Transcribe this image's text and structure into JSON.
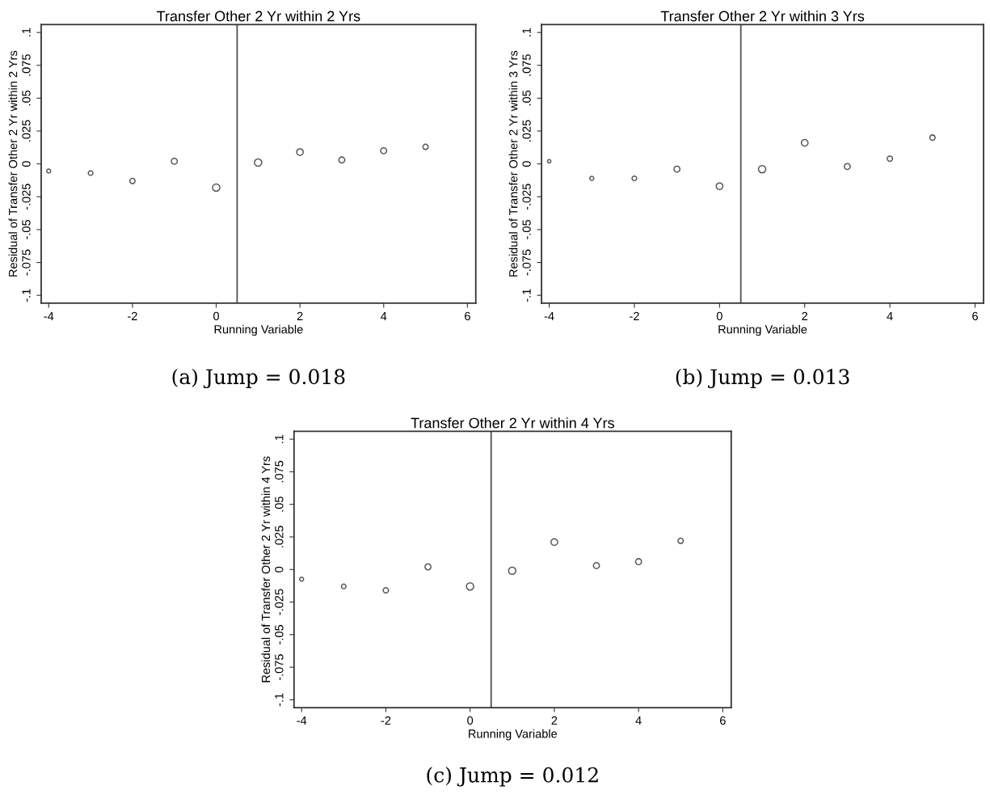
{
  "chart_data": [
    {
      "type": "bubble",
      "title": "Transfer Other 2 Yr within 2 Yrs",
      "xlabel": "Running Variable",
      "ylabel": "Residual of Transfer Other 2 Yr within 2 Yrs",
      "annotations": [
        "(a) Jump = 0.018"
      ],
      "x": [
        -4,
        -3,
        -2,
        -1,
        0,
        1,
        2,
        3,
        4,
        5
      ],
      "series": [
        {
          "color": "#5a5a5a",
          "values": [
            -0.0054,
            -0.007,
            -0.013,
            0.002,
            -0.018,
            0.001,
            0.009,
            0.003,
            0.01,
            0.013
          ],
          "sizes": [
            0.3,
            0.4,
            0.53,
            0.67,
            1,
            1,
            0.83,
            0.67,
            0.67,
            0.53
          ]
        }
      ],
      "marker": "circle",
      "xlim": [
        -4.18,
        6.2
      ],
      "xticks": [
        -4,
        -2,
        0,
        2,
        4,
        6
      ],
      "ylim": [
        -0.106,
        0.106
      ],
      "yticks": [
        {
          "value": -0.1,
          "label": "-.1"
        },
        {
          "value": -0.075,
          "label": "-.075"
        },
        {
          "value": -0.05,
          "label": "-.05"
        },
        {
          "value": -0.025,
          "label": "-.025"
        },
        {
          "value": 0,
          "label": "0"
        },
        {
          "value": 0.025,
          "label": ".025"
        },
        {
          "value": 0.05,
          "label": ".05"
        },
        {
          "value": 0.075,
          "label": ".075"
        },
        {
          "value": 0.1,
          "label": ".1"
        }
      ],
      "ref_lines": [
        {
          "axis": "x",
          "value": 0.5,
          "color": "#505050"
        }
      ],
      "grid": false
    },
    {
      "type": "bubble",
      "title": "Transfer Other 2 Yr within 3 Yrs",
      "xlabel": "Running Variable",
      "ylabel": "Residual of Transfer Other 2 Yr within 3 Yrs",
      "annotations": [
        "(b) Jump = 0.013"
      ],
      "x": [
        -4,
        -3,
        -2,
        -1,
        0,
        1,
        2,
        3,
        4,
        5
      ],
      "series": [
        {
          "color": "#5a5a5a",
          "values": [
            0.002,
            -0.011,
            -0.011,
            -0.004,
            -0.017,
            -0.004,
            0.016,
            -0.002,
            0.004,
            0.02
          ],
          "sizes": [
            0.21,
            0.3,
            0.4,
            0.67,
            0.83,
            1,
            0.83,
            0.67,
            0.53,
            0.53
          ]
        }
      ],
      "marker": "circle",
      "xlim": [
        -4.18,
        6.2
      ],
      "xticks": [
        -4,
        -2,
        0,
        2,
        4,
        6
      ],
      "ylim": [
        -0.106,
        0.106
      ],
      "yticks": [
        {
          "value": -0.1,
          "label": "-.1"
        },
        {
          "value": -0.075,
          "label": "-.075"
        },
        {
          "value": -0.05,
          "label": "-.05"
        },
        {
          "value": -0.025,
          "label": "-.025"
        },
        {
          "value": 0,
          "label": "0"
        },
        {
          "value": 0.025,
          "label": ".025"
        },
        {
          "value": 0.05,
          "label": ".05"
        },
        {
          "value": 0.075,
          "label": ".075"
        },
        {
          "value": 0.1,
          "label": ".1"
        }
      ],
      "ref_lines": [
        {
          "axis": "x",
          "value": 0.5,
          "color": "#505050"
        }
      ],
      "grid": false
    },
    {
      "type": "bubble",
      "title": "Transfer Other 2 Yr within 4 Yrs",
      "xlabel": "Running Variable",
      "ylabel": "Residual of Transfer Other 2 Yr within 4 Yrs",
      "annotations": [
        "(c) Jump = 0.012"
      ],
      "x": [
        -4,
        -3,
        -2,
        -1,
        0,
        1,
        2,
        3,
        4,
        5
      ],
      "series": [
        {
          "color": "#5a5a5a",
          "values": [
            -0.0075,
            -0.013,
            -0.016,
            0.002,
            -0.013,
            -0.001,
            0.021,
            0.003,
            0.006,
            0.022
          ],
          "sizes": [
            0.3,
            0.4,
            0.53,
            0.67,
            1,
            1,
            0.83,
            0.67,
            0.67,
            0.53
          ]
        }
      ],
      "marker": "circle",
      "xlim": [
        -4.18,
        6.2
      ],
      "xticks": [
        -4,
        -2,
        0,
        2,
        4,
        6
      ],
      "ylim": [
        -0.106,
        0.106
      ],
      "yticks": [
        {
          "value": -0.1,
          "label": "-.1"
        },
        {
          "value": -0.075,
          "label": "-.075"
        },
        {
          "value": -0.05,
          "label": "-.05"
        },
        {
          "value": -0.025,
          "label": "-.025"
        },
        {
          "value": 0,
          "label": "0"
        },
        {
          "value": 0.025,
          "label": ".025"
        },
        {
          "value": 0.05,
          "label": ".05"
        },
        {
          "value": 0.075,
          "label": ".075"
        },
        {
          "value": 0.1,
          "label": ".1"
        }
      ],
      "ref_lines": [
        {
          "axis": "x",
          "value": 0.5,
          "color": "#505050"
        }
      ],
      "grid": false
    }
  ]
}
